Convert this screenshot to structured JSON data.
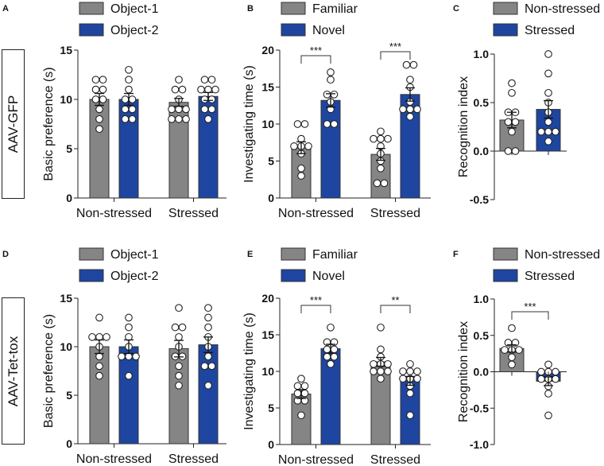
{
  "colors": {
    "gray": "#858585",
    "blue": "#1e46a0",
    "outline": "#333333"
  },
  "row_labels": [
    "AAV-GFP",
    "AAV-Tet-tox"
  ],
  "chart_data": [
    {
      "panel": "A",
      "type": "bar",
      "ylabel": "Basic preference (s)",
      "ylim": [
        0,
        15
      ],
      "yticks": [
        "0",
        "5",
        "10",
        "15"
      ],
      "ytick_values": [
        0,
        5,
        10,
        15
      ],
      "categories": [
        "Non-stressed",
        "Stressed"
      ],
      "legend": [
        "Object-1",
        "Object-2"
      ],
      "series": [
        {
          "name": "Object-1",
          "means": [
            10.0,
            9.7
          ],
          "sem": [
            0.6,
            0.4
          ],
          "points": [
            [
              12,
              12,
              11,
              11,
              10,
              10,
              9,
              8,
              7
            ],
            [
              12,
              11,
              11,
              10,
              9,
              9,
              9,
              8,
              8,
              8
            ]
          ]
        },
        {
          "name": "Object-2",
          "means": [
            10.0,
            10.3
          ],
          "sem": [
            0.6,
            0.4
          ],
          "points": [
            [
              13,
              12,
              11,
              10,
              10,
              9,
              9,
              8,
              8
            ],
            [
              12,
              12,
              11,
              11,
              11,
              10,
              10,
              9,
              9,
              8
            ]
          ]
        }
      ],
      "significance": []
    },
    {
      "panel": "B",
      "type": "bar",
      "ylabel": "Investigating time (s)",
      "ylim": [
        0,
        20
      ],
      "yticks": [
        "0",
        "5",
        "10",
        "15",
        "20"
      ],
      "ytick_values": [
        0,
        5,
        10,
        15,
        20
      ],
      "categories": [
        "Non-stressed",
        "Stressed"
      ],
      "legend": [
        "Familiar",
        "Novel"
      ],
      "series": [
        {
          "name": "Familiar",
          "means": [
            6.8,
            5.9
          ],
          "sem": [
            0.8,
            0.8
          ],
          "points": [
            [
              10,
              10,
              8,
              7,
              7,
              7,
              6,
              4,
              3
            ],
            [
              9,
              8,
              8,
              8,
              7,
              6,
              5,
              4,
              2,
              2
            ]
          ]
        },
        {
          "name": "Novel",
          "means": [
            13.2,
            14.0
          ],
          "sem": [
            0.9,
            0.9
          ],
          "points": [
            [
              17,
              16,
              14,
              14,
              13,
              12,
              10,
              10
            ],
            [
              18,
              18,
              16,
              15,
              13,
              12,
              12,
              12,
              11
            ]
          ]
        }
      ],
      "significance": [
        "***",
        "***"
      ]
    },
    {
      "panel": "C",
      "type": "bar",
      "ylabel": "Recognition index",
      "ylim": [
        -0.5,
        1.0
      ],
      "yticks": [
        "-0.5",
        "0.0",
        "0.5",
        "1.0"
      ],
      "ytick_values": [
        -0.5,
        0,
        0.5,
        1.0
      ],
      "categories": [
        "Non-stressed",
        "Stressed"
      ],
      "legend": [
        "Non-stressed",
        "Stressed"
      ],
      "series": [
        {
          "name": "Non-stressed",
          "means": [
            0.32
          ],
          "sem": [
            0.08
          ],
          "points": [
            [
              0.7,
              0.6,
              0.4,
              0.4,
              0.3,
              0.3,
              0.2,
              0,
              0
            ]
          ]
        },
        {
          "name": "Stressed",
          "means": [
            0.43
          ],
          "sem": [
            0.09
          ],
          "points": [
            [
              1.0,
              0.8,
              0.6,
              0.5,
              0.4,
              0.3,
              0.2,
              0.2,
              0.2,
              0.1
            ]
          ]
        }
      ],
      "significance": []
    },
    {
      "panel": "D",
      "type": "bar",
      "ylabel": "Basic preference (s)",
      "ylim": [
        0,
        15
      ],
      "yticks": [
        "0",
        "5",
        "10",
        "15"
      ],
      "ytick_values": [
        0,
        5,
        10,
        15
      ],
      "categories": [
        "Non-stressed",
        "Stressed"
      ],
      "legend": [
        "Object-1",
        "Object-2"
      ],
      "series": [
        {
          "name": "Object-1",
          "means": [
            10.0,
            9.8
          ],
          "sem": [
            0.7,
            0.85
          ],
          "points": [
            [
              13,
              11,
              11,
              11,
              10,
              9,
              8,
              7
            ],
            [
              14,
              12,
              12,
              11,
              10,
              9,
              9,
              8,
              7,
              6
            ]
          ]
        },
        {
          "name": "Object-2",
          "means": [
            10.0,
            10.2
          ],
          "sem": [
            0.7,
            0.8
          ],
          "points": [
            [
              13,
              12,
              11,
              10,
              9,
              9,
              9,
              7
            ],
            [
              14,
              13,
              12,
              11,
              10,
              9,
              8,
              8,
              6
            ]
          ]
        }
      ],
      "significance": []
    },
    {
      "panel": "E",
      "type": "bar",
      "ylabel": "Investigating time (s)",
      "ylim": [
        0,
        20
      ],
      "yticks": [
        "0",
        "5",
        "10",
        "15",
        "20"
      ],
      "ytick_values": [
        0,
        5,
        10,
        15,
        20
      ],
      "categories": [
        "Non-stressed",
        "Stressed"
      ],
      "legend": [
        "Familiar",
        "Novel"
      ],
      "series": [
        {
          "name": "Familiar",
          "means": [
            6.9,
            11.3
          ],
          "sem": [
            0.6,
            0.6
          ],
          "points": [
            [
              9,
              8,
              8,
              7,
              7,
              6,
              6,
              4
            ],
            [
              16,
              13,
              12,
              11,
              11,
              11,
              10,
              10,
              10,
              9
            ]
          ]
        },
        {
          "name": "Novel",
          "means": [
            13.1,
            8.7
          ],
          "sem": [
            0.6,
            0.6
          ],
          "points": [
            [
              16,
              14,
              14,
              13,
              13,
              12,
              12,
              11
            ],
            [
              11,
              10,
              10,
              10,
              9,
              9,
              9,
              8,
              7,
              4
            ]
          ]
        }
      ],
      "significance": [
        "***",
        "**"
      ]
    },
    {
      "panel": "F",
      "type": "bar",
      "ylabel": "Recognition index",
      "ylim": [
        -1.0,
        1.0
      ],
      "yticks": [
        "-1.0",
        "-0.5",
        "0.0",
        "0.5",
        "1.0"
      ],
      "ytick_values": [
        -1.0,
        -0.5,
        0,
        0.5,
        1.0
      ],
      "categories": [
        "Non-stressed",
        "Stressed"
      ],
      "legend": [
        "Non-stressed",
        "Stressed"
      ],
      "series": [
        {
          "name": "Non-stressed",
          "means": [
            0.32
          ],
          "sem": [
            0.05
          ],
          "points": [
            [
              0.6,
              0.4,
              0.4,
              0.3,
              0.3,
              0.3,
              0.2,
              0.1
            ]
          ]
        },
        {
          "name": "Stressed",
          "means": [
            -0.13
          ],
          "sem": [
            0.06
          ],
          "points": [
            [
              0.1,
              0,
              0,
              0,
              -0.1,
              -0.1,
              -0.1,
              -0.2,
              -0.3,
              -0.6
            ]
          ]
        }
      ],
      "significance": [
        "***"
      ]
    }
  ]
}
